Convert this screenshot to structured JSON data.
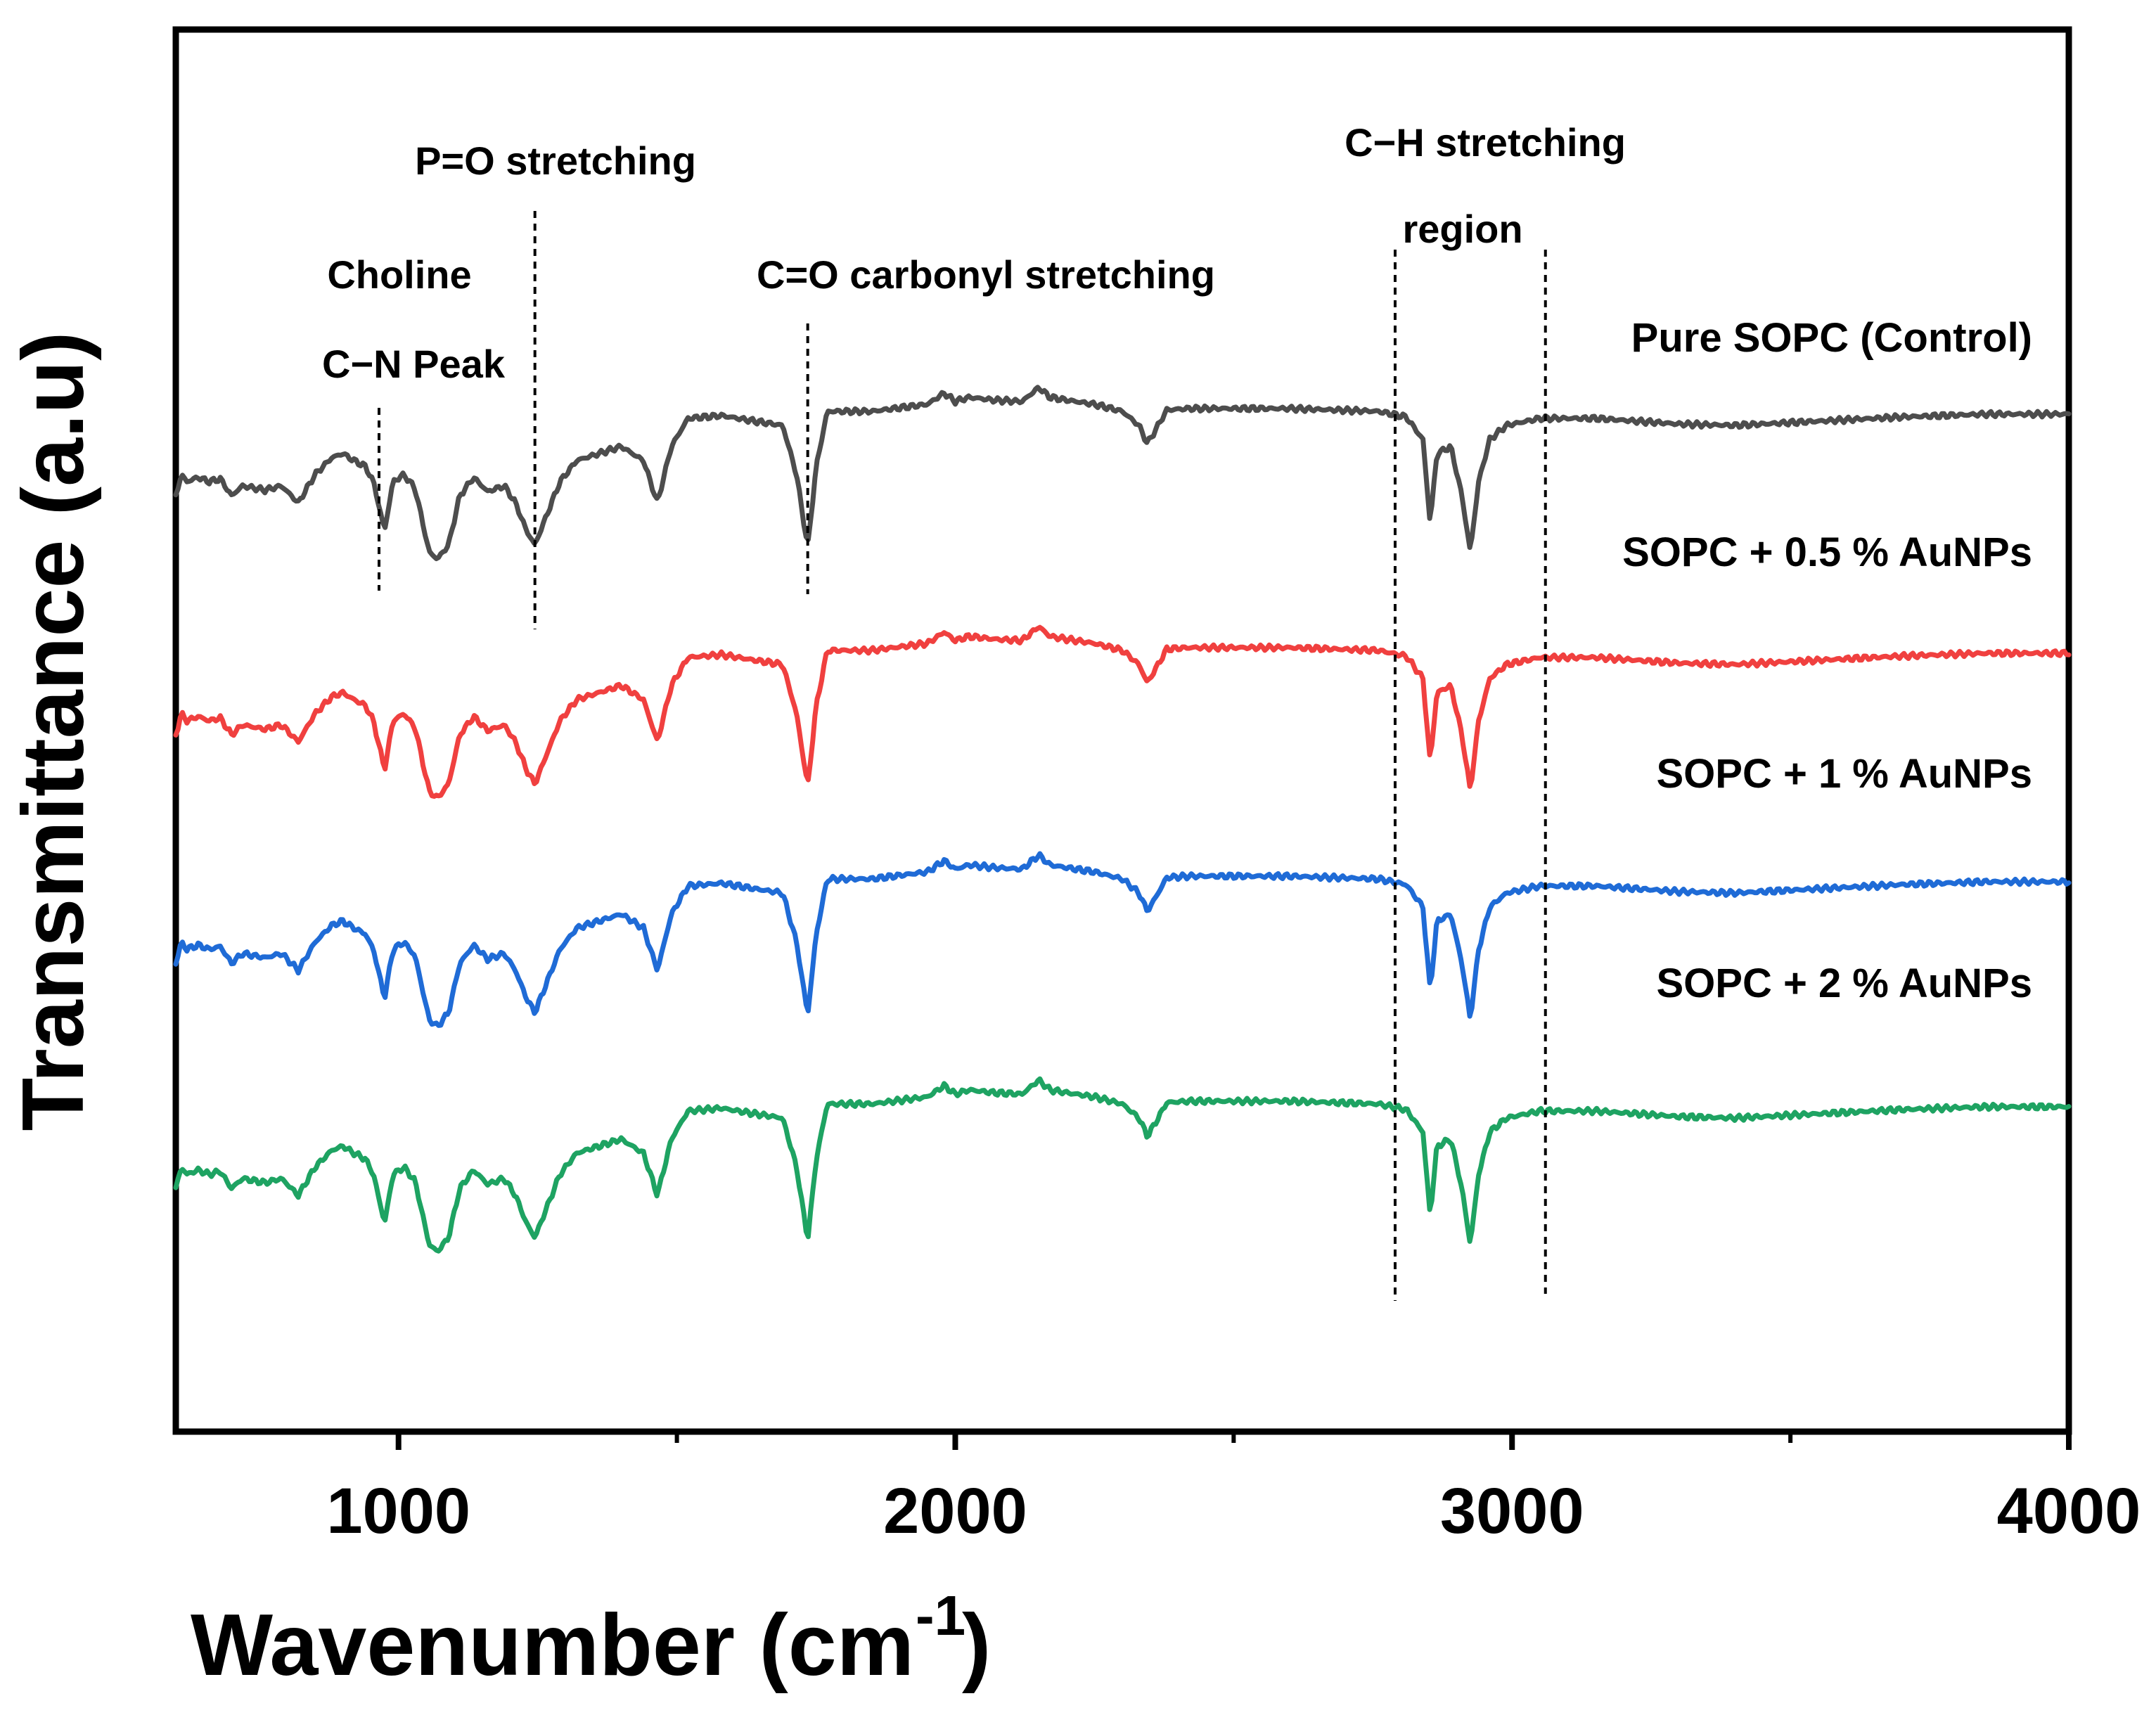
{
  "chart_data": {
    "type": "line",
    "xlabel": "Wavenumber (cm",
    "xlabel_sup": "-1",
    "xlabel_close": ")",
    "ylabel": "Transmittance (a.u)",
    "xlim": [
      600,
      4000
    ],
    "xticks": [
      1000,
      2000,
      3000,
      4000
    ],
    "x_minor_ticks": [
      1500,
      2500,
      3500
    ],
    "y_ticks_visible": false,
    "grid": false,
    "legend_placement": "inline labels to the right of each trace",
    "annotations": {
      "choline_line1": "Choline",
      "choline_line2": "C−N Peak",
      "po": "P=O stretching",
      "co": "C=O carbonyl stretching",
      "ch_line1": "C−H stretching",
      "ch_line2": "region"
    },
    "annotation_lines_x": [
      965,
      1245,
      1735,
      2790,
      3060
    ],
    "baseline": [
      [
        600,
        0.45
      ],
      [
        610,
        0.6
      ],
      [
        620,
        0.55
      ],
      [
        640,
        0.58
      ],
      [
        660,
        0.55
      ],
      [
        680,
        0.57
      ],
      [
        700,
        0.45
      ],
      [
        720,
        0.52
      ],
      [
        760,
        0.49
      ],
      [
        790,
        0.52
      ],
      [
        820,
        0.4
      ],
      [
        850,
        0.6
      ],
      [
        880,
        0.72
      ],
      [
        900,
        0.75
      ],
      [
        920,
        0.7
      ],
      [
        940,
        0.66
      ],
      [
        955,
        0.55
      ],
      [
        975,
        0.2
      ],
      [
        990,
        0.55
      ],
      [
        1010,
        0.6
      ],
      [
        1030,
        0.5
      ],
      [
        1055,
        0.05
      ],
      [
        1070,
        0.0
      ],
      [
        1090,
        0.1
      ],
      [
        1110,
        0.45
      ],
      [
        1135,
        0.58
      ],
      [
        1160,
        0.48
      ],
      [
        1190,
        0.52
      ],
      [
        1210,
        0.4
      ],
      [
        1230,
        0.2
      ],
      [
        1245,
        0.1
      ],
      [
        1260,
        0.25
      ],
      [
        1290,
        0.55
      ],
      [
        1320,
        0.7
      ],
      [
        1360,
        0.75
      ],
      [
        1400,
        0.8
      ],
      [
        1440,
        0.7
      ],
      [
        1465,
        0.4
      ],
      [
        1490,
        0.8
      ],
      [
        1520,
        1.0
      ],
      [
        1580,
        1.02
      ],
      [
        1640,
        0.98
      ],
      [
        1690,
        0.95
      ],
      [
        1715,
        0.6
      ],
      [
        1735,
        0.08
      ],
      [
        1750,
        0.65
      ],
      [
        1770,
        1.05
      ],
      [
        1850,
        1.05
      ],
      [
        1950,
        1.1
      ],
      [
        1980,
        1.18
      ],
      [
        2000,
        1.12
      ],
      [
        2025,
        1.15
      ],
      [
        2070,
        1.13
      ],
      [
        2120,
        1.12
      ],
      [
        2150,
        1.22
      ],
      [
        2170,
        1.15
      ],
      [
        2200,
        1.13
      ],
      [
        2250,
        1.1
      ],
      [
        2300,
        1.05
      ],
      [
        2330,
        0.95
      ],
      [
        2345,
        0.82
      ],
      [
        2360,
        0.92
      ],
      [
        2380,
        1.06
      ],
      [
        2420,
        1.07
      ],
      [
        2600,
        1.07
      ],
      [
        2760,
        1.05
      ],
      [
        2810,
        1.01
      ],
      [
        2840,
        0.85
      ],
      [
        2853,
        0.25
      ],
      [
        2865,
        0.75
      ],
      [
        2890,
        0.8
      ],
      [
        2910,
        0.45
      ],
      [
        2925,
        0.05
      ],
      [
        2940,
        0.55
      ],
      [
        2960,
        0.85
      ],
      [
        2990,
        0.95
      ],
      [
        3050,
        1.0
      ],
      [
        3150,
        1.0
      ],
      [
        3300,
        0.96
      ],
      [
        3400,
        0.95
      ],
      [
        3550,
        0.98
      ],
      [
        3700,
        1.01
      ],
      [
        3850,
        1.03
      ],
      [
        4000,
        1.03
      ]
    ],
    "series": [
      {
        "name": "Pure SOPC (Control)",
        "color": "#4d4d4d"
      },
      {
        "name": "SOPC + 0.5 % AuNPs",
        "color": "#f0403f"
      },
      {
        "name": "SOPC + 1 % AuNPs",
        "color": "#1f6bd6"
      },
      {
        "name": "SOPC + 2 % AuNPs",
        "color": "#1ea362"
      }
    ]
  }
}
